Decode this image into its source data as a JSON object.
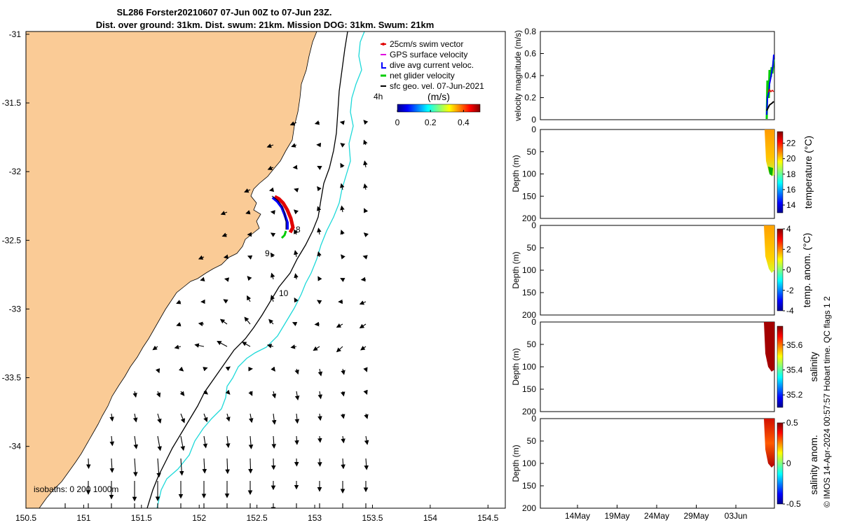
{
  "title_lines": [
    "SL286 Forster20210607 07-Jun 00Z to 07-Jun 23Z.",
    "Dist. over ground: 31km. Dist. swum: 21km. Mission DOG: 31km. Swum: 21km"
  ],
  "credit": "© IMOS 14-Apr-2024 00:57:57 Hobart time. QC flags 1  2",
  "colors": {
    "land": "#FACB96",
    "isobath_shallow": "#000000",
    "isobath_deep": "#1DD9D9",
    "swim_vector": "#E00000",
    "gps_velocity": "#E000E0",
    "dive_avg": "#0000FF",
    "net_glider": "#00CC00",
    "sfc_geo": "#000000"
  },
  "chart_data": [
    {
      "type": "map",
      "xlim": [
        150.5,
        154.65
      ],
      "ylim": [
        -34.45,
        -30.98
      ],
      "x_ticks": [
        "150.5",
        "151",
        "151.5",
        "152",
        "152.5",
        "153",
        "153.5",
        "154",
        "154.5"
      ],
      "y_ticks": [
        "-31",
        "-31.5",
        "-32",
        "-32.5",
        "-33",
        "-33.5",
        "-34"
      ],
      "legend": [
        "25cm/s swim vector",
        "GPS surface velocity",
        "dive avg current veloc.",
        "net glider velocity",
        "sfc geo. vel. 07-Jun-2021"
      ],
      "colorbar": {
        "label": "(m/s)",
        "ticks": [
          "0",
          "0.2",
          "0.4"
        ],
        "range": [
          0,
          0.5
        ]
      },
      "isobath_text": "isobaths: 0   200  1000m",
      "track_labels": [
        {
          "text": "4h",
          "lon": 153.56,
          "lat": -31.42
        },
        {
          "text": "8",
          "lon": 152.84,
          "lat": -32.41
        },
        {
          "text": "9",
          "lon": 152.56,
          "lat": -32.57
        },
        {
          "text": "10",
          "lon": 152.71,
          "lat": -32.87
        }
      ]
    },
    {
      "type": "line",
      "ylabel": "velocity magnitude (m/s)",
      "ylim": [
        0,
        0.8
      ],
      "y_ticks": [
        "0",
        "0.2",
        "0.4",
        "0.6",
        "0.8"
      ]
    },
    {
      "type": "heatmap",
      "ylabel": "Depth (m)",
      "ylim": [
        0,
        200
      ],
      "y_ticks": [
        "0",
        "50",
        "100",
        "150",
        "200"
      ],
      "colorbar_label": "temperature (°C)",
      "colorbar_ticks": [
        "14",
        "16",
        "18",
        "20",
        "22"
      ],
      "colorbar_range": [
        13,
        23.5
      ]
    },
    {
      "type": "heatmap",
      "ylabel": "Depth (m)",
      "ylim": [
        0,
        200
      ],
      "y_ticks": [
        "0",
        "50",
        "100",
        "150",
        "200"
      ],
      "colorbar_label": "temp. anom. (°C)",
      "colorbar_ticks": [
        "-4",
        "-2",
        "0",
        "2",
        "4"
      ],
      "colorbar_range": [
        -4,
        4
      ]
    },
    {
      "type": "heatmap",
      "ylabel": "Depth (m)",
      "ylim": [
        0,
        200
      ],
      "y_ticks": [
        "0",
        "50",
        "100",
        "150",
        "200"
      ],
      "colorbar_label": "salinity",
      "colorbar_ticks": [
        "35.2",
        "35.4",
        "35.6"
      ],
      "colorbar_range": [
        35.1,
        35.75
      ]
    },
    {
      "type": "heatmap",
      "ylabel": "Depth (m)",
      "ylim": [
        0,
        200
      ],
      "y_ticks": [
        "0",
        "50",
        "100",
        "150",
        "200"
      ],
      "colorbar_label": "salinity anom.",
      "colorbar_ticks": [
        "-0.5",
        "0",
        "0.5"
      ],
      "colorbar_range": [
        -0.5,
        0.5
      ],
      "x_ticks": [
        "14May",
        "19May",
        "24May",
        "29May",
        "03Jun"
      ]
    }
  ]
}
